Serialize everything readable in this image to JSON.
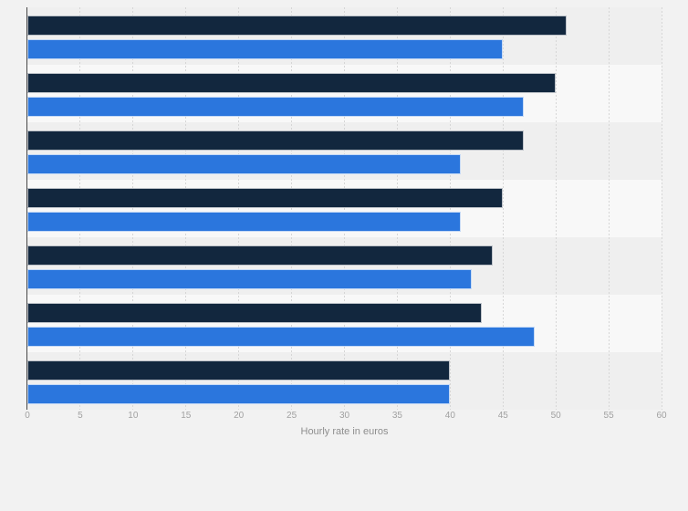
{
  "chart_data": {
    "type": "bar",
    "orientation": "horizontal",
    "title": "",
    "xlabel": "Hourly rate in euros",
    "ylabel": "",
    "categories": [
      "",
      "",
      "",
      "",
      "",
      "",
      ""
    ],
    "series": [
      {
        "name": "dark-navy-series",
        "color": "#12273e",
        "values": [
          51,
          50,
          47,
          45,
          44,
          43,
          40
        ]
      },
      {
        "name": "blue-series",
        "color": "#2b76dd",
        "values": [
          45,
          47,
          41,
          41,
          42,
          48,
          40
        ]
      }
    ],
    "xlim": [
      0,
      60
    ],
    "xticks": [
      0,
      5,
      10,
      15,
      20,
      25,
      30,
      35,
      40,
      45,
      50,
      55,
      60
    ],
    "grid": true,
    "legend_position": "none"
  },
  "colors": {
    "page_background": "#f2f2f2",
    "band_gray": "#efefef",
    "band_light": "#f8f8f8",
    "gridline": "#d6d6d6",
    "axis_line": "#474747",
    "tick_text": "#a1a1a1",
    "axis_title_text": "#8e8e8e"
  }
}
